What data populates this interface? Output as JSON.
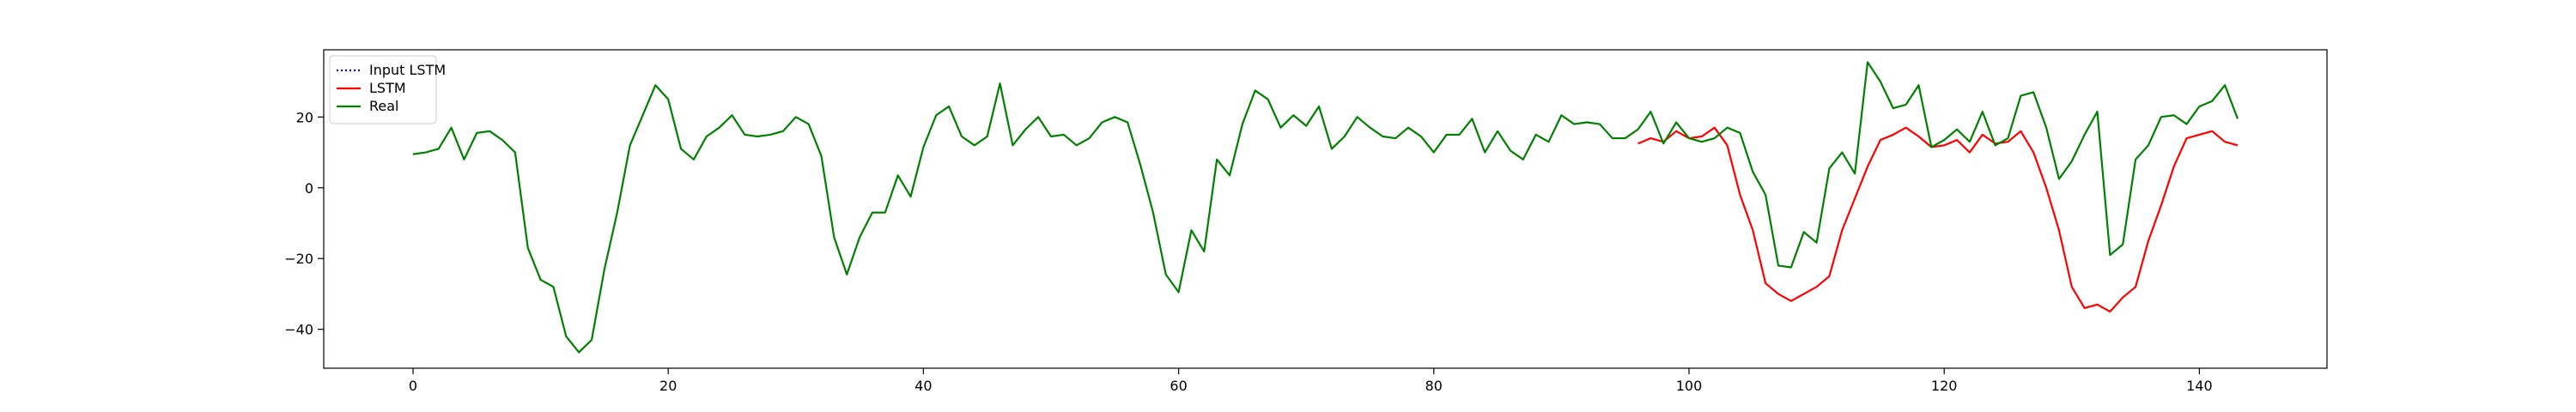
{
  "chart_data": {
    "type": "line",
    "title": "",
    "xlabel": "",
    "ylabel": "",
    "xlim": [
      -7,
      150
    ],
    "ylim": [
      -51,
      39
    ],
    "grid": false,
    "legend": {
      "placement": "top-left",
      "entries": [
        "Input LSTM",
        "LSTM",
        "Real"
      ]
    },
    "x_ticks": [
      0,
      20,
      40,
      60,
      80,
      100,
      120,
      140
    ],
    "y_ticks": [
      -40,
      -20,
      0,
      20
    ],
    "x_tick_labels": [
      "0",
      "20",
      "40",
      "60",
      "80",
      "100",
      "120",
      "140"
    ],
    "y_tick_labels": [
      "−40",
      "−20",
      "0",
      "20"
    ],
    "series": [
      {
        "name": "Input LSTM",
        "color": "#0000ff",
        "style": "dotted",
        "x_start": 0,
        "values": []
      },
      {
        "name": "LSTM",
        "color": "#ff0000",
        "style": "solid",
        "x_start": 96,
        "values": [
          12.5,
          14,
          13,
          16,
          14,
          14.5,
          17,
          12,
          -2,
          -12,
          -27,
          -30,
          -32,
          -30,
          -28,
          -25,
          -12,
          -3,
          6,
          13.5,
          15,
          17,
          14.5,
          11.5,
          12,
          13.5,
          10,
          15,
          12.5,
          13,
          16,
          10,
          0,
          -12,
          -28,
          -34,
          -33,
          -35,
          -31,
          -28,
          -15,
          -5,
          6,
          14,
          15,
          16,
          13,
          12
        ]
      },
      {
        "name": "Real",
        "color": "#008000",
        "style": "solid",
        "x_start": 0,
        "values": [
          9.5,
          10,
          11,
          17,
          8,
          15.5,
          16,
          13.5,
          10,
          -17,
          -26,
          -28,
          -42,
          -46.5,
          -43,
          -23,
          -7,
          12,
          20.5,
          29,
          25,
          11,
          8,
          14.5,
          17,
          20.5,
          15,
          14.5,
          15,
          16,
          20,
          18,
          9,
          -14,
          -24.5,
          -14,
          -7,
          -7,
          3.5,
          -2.5,
          11.5,
          20.5,
          23,
          14.5,
          12,
          14.5,
          29.5,
          12,
          16.5,
          20,
          14.5,
          15,
          12,
          14,
          18.5,
          20,
          18.5,
          6.5,
          -7,
          -24.5,
          -29.5,
          -12,
          -18,
          8,
          3.5,
          18,
          27.5,
          25,
          17,
          20.5,
          17.5,
          23,
          11,
          14.5,
          20,
          17,
          14.5,
          14,
          17,
          14.5,
          10,
          15,
          15,
          19.5,
          10,
          16,
          10.5,
          8,
          15,
          13,
          20.5,
          18,
          18.5,
          18,
          14,
          14,
          16.5,
          21.5,
          12.5,
          18.5,
          14,
          13,
          14,
          17,
          15.5,
          4.5,
          -2,
          -22,
          -22.5,
          -12.5,
          -15.5,
          5.5,
          10,
          4,
          35.5,
          30,
          22.5,
          23.5,
          29,
          11.5,
          13.5,
          16.5,
          13,
          21.5,
          12,
          14,
          26,
          27,
          17,
          2.5,
          7.5,
          15,
          21.5,
          -19,
          -16,
          8,
          12,
          20,
          20.5,
          18,
          23,
          24.5,
          29,
          19.5
        ]
      }
    ]
  }
}
